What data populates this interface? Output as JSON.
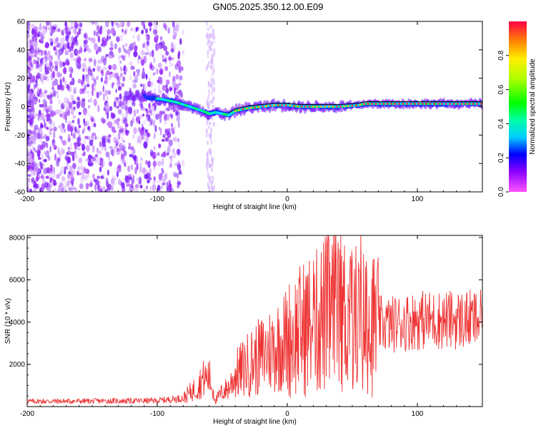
{
  "title": "GN05.2025.350.12.00.E09",
  "chart_data": [
    {
      "type": "heatmap",
      "title": "GN05.2025.350.12.00.E09",
      "xlabel": "Height of straight line (km)",
      "ylabel": "Frequency (Hz)",
      "xlim": [
        -200,
        150
      ],
      "ylim": [
        -60,
        60
      ],
      "xticks": [
        -200,
        -100,
        0,
        100
      ],
      "yticks": [
        -60,
        -40,
        -20,
        0,
        20,
        40,
        60
      ],
      "colorbar": {
        "label": "Normalized spectral amplitude",
        "range": [
          0.0,
          1.0
        ],
        "ticks": [
          0.0,
          0.2,
          0.4,
          0.6,
          0.8
        ]
      },
      "ridge": {
        "description_x": [
          -110,
          -95,
          -85,
          -75,
          -65,
          -60,
          -55,
          -50,
          -45,
          -40,
          -30,
          -20,
          -10,
          0,
          10,
          20,
          40,
          55,
          60,
          80,
          100,
          120,
          150
        ],
        "frequency_y": [
          7,
          5,
          3,
          0,
          -3,
          -5,
          -4,
          -5,
          -6,
          -3,
          -1,
          0,
          1,
          1,
          0,
          0,
          0,
          1,
          2,
          2,
          2,
          2,
          2
        ]
      }
    },
    {
      "type": "line",
      "xlabel": "Height of straight line (km)",
      "ylabel": "SNR (10 * v/v)",
      "xlim": [
        -200,
        150
      ],
      "ylim": [
        0,
        8100
      ],
      "xticks": [
        -200,
        -100,
        0,
        100
      ],
      "yticks": [
        2000,
        4000,
        6000,
        8000
      ],
      "series": [
        {
          "name": "SNR",
          "color": "#ee3333",
          "envelope_x": [
            -200,
            -150,
            -100,
            -80,
            -70,
            -65,
            -60,
            -55,
            -50,
            -45,
            -40,
            -30,
            -20,
            -10,
            0,
            10,
            20,
            30,
            40,
            50,
            60,
            70,
            80,
            90,
            100,
            120,
            150
          ],
          "envelope_y": [
            250,
            260,
            280,
            400,
            900,
            1300,
            1400,
            300,
            700,
            900,
            1500,
            2000,
            2400,
            2800,
            3200,
            3600,
            4000,
            4400,
            4500,
            4300,
            4000,
            3900,
            3900,
            4000,
            4100,
            4100,
            4100
          ]
        }
      ]
    }
  ]
}
